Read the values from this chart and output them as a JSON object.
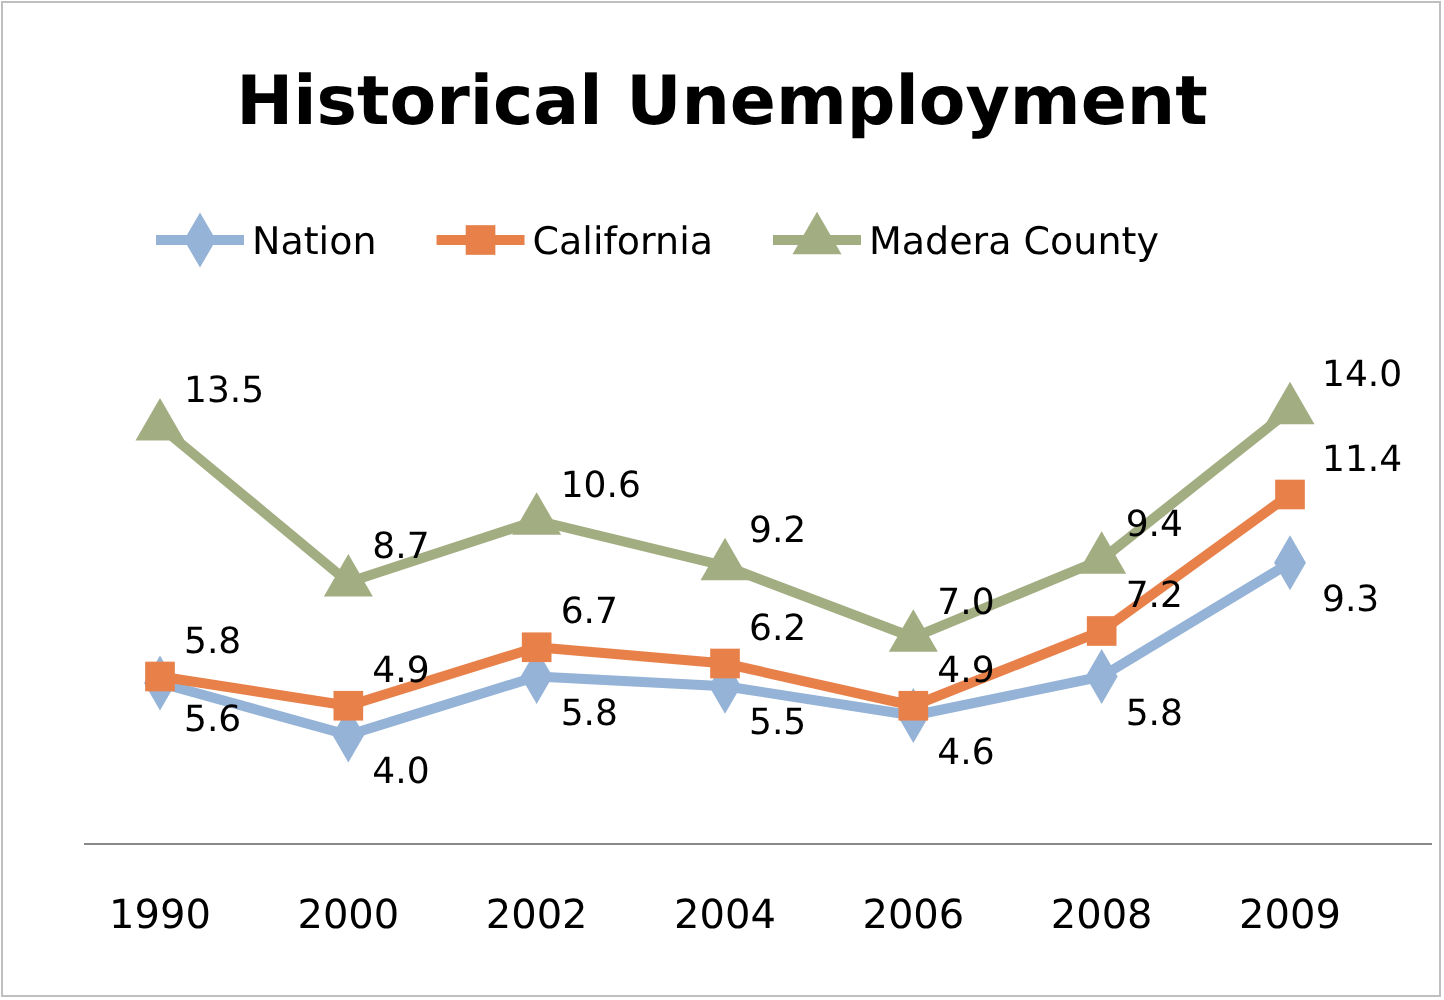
{
  "chart_data": {
    "type": "line",
    "title": "Historical Unemployment",
    "legend": "top",
    "line_style": "solid",
    "categories": [
      "1990",
      "2000",
      "2002",
      "2004",
      "2006",
      "2008",
      "2009"
    ],
    "series": [
      {
        "name": "Nation",
        "color": "#95b3d7",
        "marker": "diamond",
        "values": [
          5.6,
          4.0,
          5.8,
          5.5,
          4.6,
          5.8,
          9.3
        ],
        "value_labels": [
          "5.6",
          "4.0",
          "5.8",
          "5.5",
          "4.6",
          "5.8",
          "9.3"
        ]
      },
      {
        "name": "California",
        "color": "#e8804a",
        "marker": "square",
        "values": [
          5.8,
          4.9,
          6.7,
          6.2,
          4.9,
          7.2,
          11.4
        ],
        "value_labels": [
          "5.8",
          "4.9",
          "6.7",
          "6.2",
          "4.9",
          "7.2",
          "11.4"
        ]
      },
      {
        "name": "Madera County",
        "color": "#a3ad82",
        "marker": "triangle",
        "values": [
          13.5,
          8.7,
          10.6,
          9.2,
          7.0,
          9.4,
          14.0
        ],
        "value_labels": [
          "13.5",
          "8.7",
          "10.6",
          "9.2",
          "7.0",
          "9.4",
          "14.0"
        ]
      }
    ]
  }
}
